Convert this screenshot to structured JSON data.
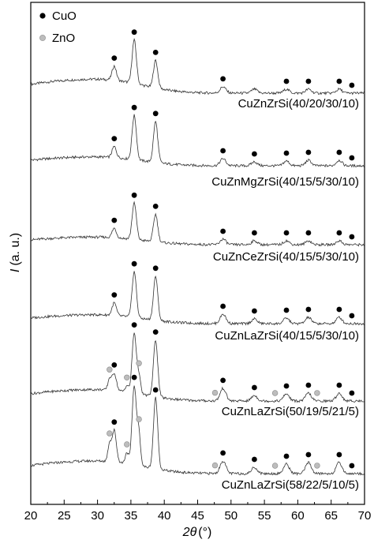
{
  "chart_data": {
    "type": "line",
    "xlabel_symbol": "2θ",
    "xlabel_unit": "(°)",
    "ylabel_symbol": "I",
    "ylabel_unit": "(a. u.)",
    "xlim": [
      20,
      70
    ],
    "x_ticks": [
      20,
      25,
      30,
      35,
      40,
      45,
      50,
      55,
      60,
      65,
      70
    ],
    "legend": [
      {
        "label": "CuO",
        "color": "#000000"
      },
      {
        "label": "ZnO",
        "color": "#bdbdbd"
      }
    ],
    "legend_placement": "top-left",
    "grid": false,
    "series": [
      {
        "name": "CuZnZrSi(40/20/30/10)",
        "cuo_markers": [
          32.5,
          35.5,
          38.7,
          48.8,
          58.3,
          61.6,
          66.2,
          68.1
        ],
        "zno_markers": []
      },
      {
        "name": "CuZnMgZrSi(40/15/5/30/10)",
        "cuo_markers": [
          32.5,
          35.5,
          38.7,
          48.8,
          53.5,
          58.3,
          61.6,
          66.2,
          68.1
        ],
        "zno_markers": []
      },
      {
        "name": "CuZnCeZrSi(40/15/5/30/10)",
        "cuo_markers": [
          32.5,
          35.5,
          38.7,
          48.8,
          53.5,
          58.3,
          61.6,
          66.2,
          68.1
        ],
        "zno_markers": []
      },
      {
        "name": "CuZnLaZrSi(40/15/5/30/10)",
        "cuo_markers": [
          32.5,
          35.5,
          38.7,
          48.8,
          53.5,
          58.3,
          61.6,
          66.2,
          68.1
        ],
        "zno_markers": []
      },
      {
        "name": "CuZnLaZrSi(50/19/5/21/5)",
        "cuo_markers": [
          32.5,
          35.5,
          38.7,
          48.8,
          53.5,
          58.3,
          61.6,
          66.2,
          68.1
        ],
        "zno_markers": [
          31.8,
          34.4,
          36.2,
          47.6,
          56.6,
          62.9
        ]
      },
      {
        "name": "CuZnLaZrSi(58/22/5/10/5)",
        "cuo_markers": [
          32.5,
          35.5,
          38.7,
          48.8,
          53.5,
          58.3,
          61.6,
          66.2,
          68.1
        ],
        "zno_markers": [
          31.8,
          34.4,
          36.2,
          47.6,
          56.6,
          62.9
        ]
      }
    ]
  }
}
